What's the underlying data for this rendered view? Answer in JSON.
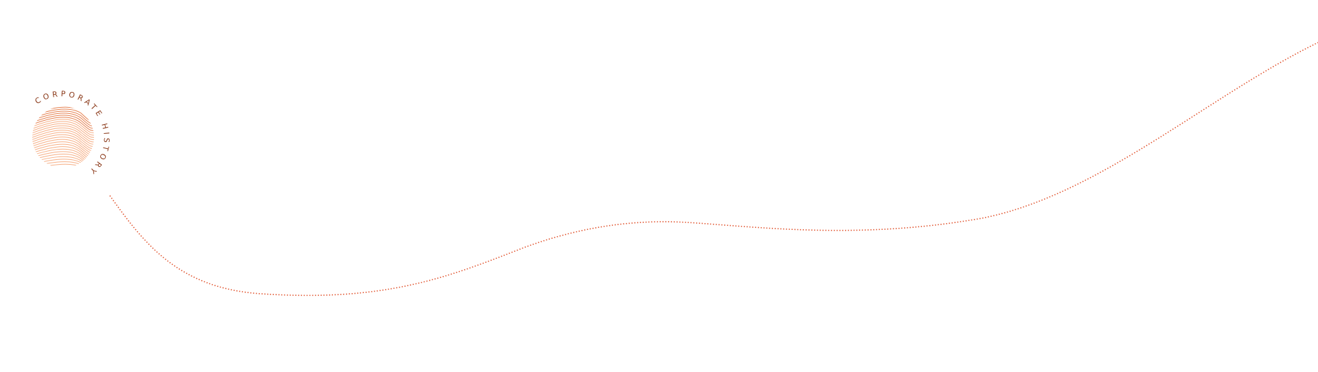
{
  "logo": {
    "text": "CORPORATE HISTORY",
    "text_color": "#8b3a1a",
    "lines_color": "#f5a06e",
    "accent_color": "#e06a30"
  },
  "timeline": {
    "line_color": "#e0502a"
  }
}
